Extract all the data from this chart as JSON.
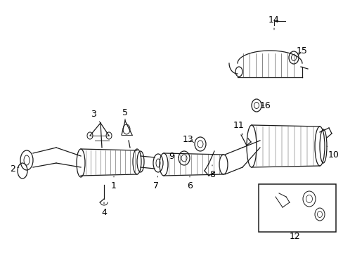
{
  "bg_color": "#ffffff",
  "line_color": "#1a1a1a",
  "fig_width": 4.89,
  "fig_height": 3.6,
  "dpi": 100,
  "lw": 0.9
}
